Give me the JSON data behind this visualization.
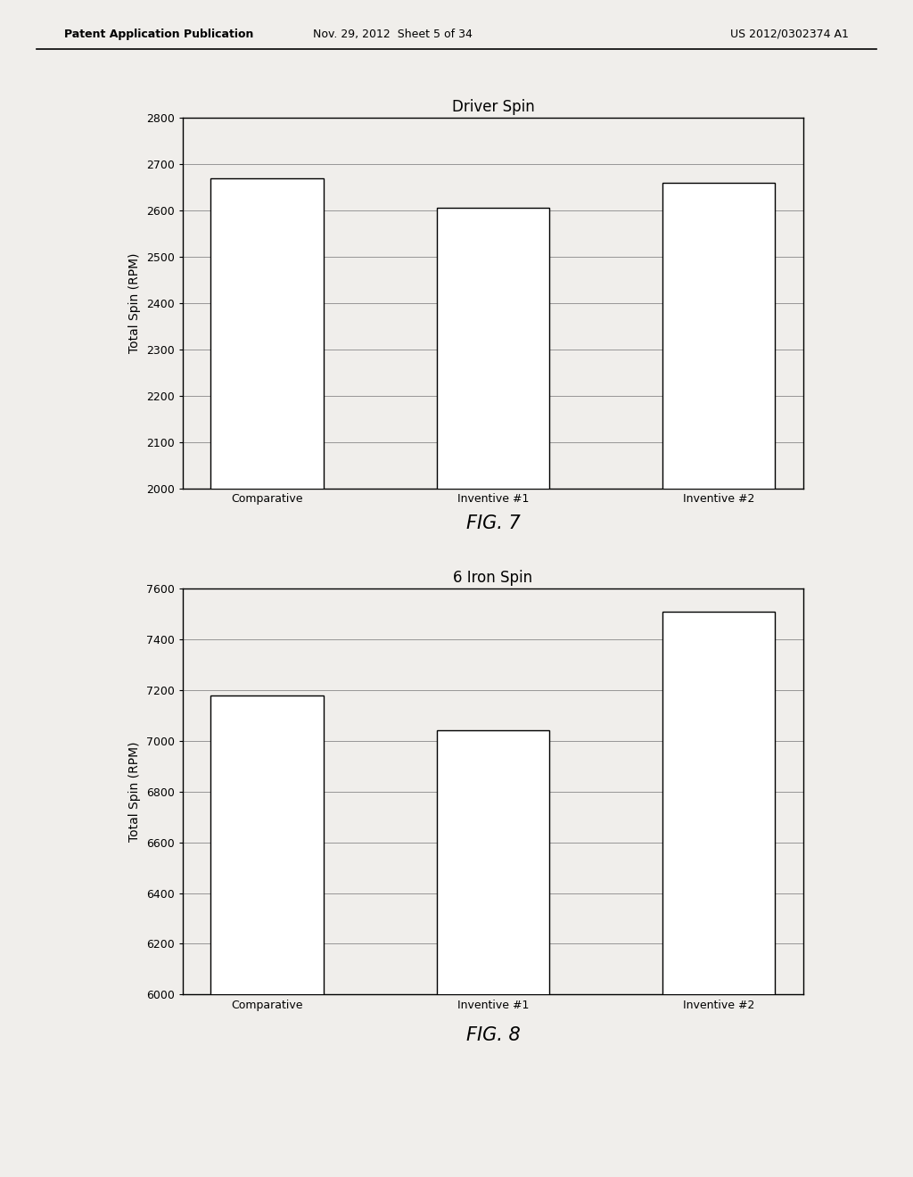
{
  "fig7": {
    "title": "Driver Spin",
    "categories": [
      "Comparative",
      "Inventive #1",
      "Inventive #2"
    ],
    "values": [
      2670,
      2605,
      2660
    ],
    "ylabel": "Total Spin (RPM)",
    "ylim": [
      2000,
      2800
    ],
    "yticks": [
      2000,
      2100,
      2200,
      2300,
      2400,
      2500,
      2600,
      2700,
      2800
    ],
    "fig_label": "FIG. 7"
  },
  "fig8": {
    "title": "6 Iron Spin",
    "categories": [
      "Comparative",
      "Inventive #1",
      "Inventive #2"
    ],
    "values": [
      7180,
      7040,
      7510
    ],
    "ylabel": "Total Spin (RPM)",
    "ylim": [
      6000,
      7600
    ],
    "yticks": [
      6000,
      6200,
      6400,
      6600,
      6800,
      7000,
      7200,
      7400,
      7600
    ],
    "fig_label": "FIG. 8"
  },
  "header_left": "Patent Application Publication",
  "header_center": "Nov. 29, 2012  Sheet 5 of 34",
  "header_right": "US 2012/0302374 A1",
  "bar_color": "#ffffff",
  "bar_edgecolor": "#000000",
  "background_color": "#f0eeeb",
  "grid_color": "#888888",
  "title_fontsize": 12,
  "label_fontsize": 10,
  "tick_fontsize": 9,
  "fig_label_fontsize": 15,
  "header_fontsize": 9
}
